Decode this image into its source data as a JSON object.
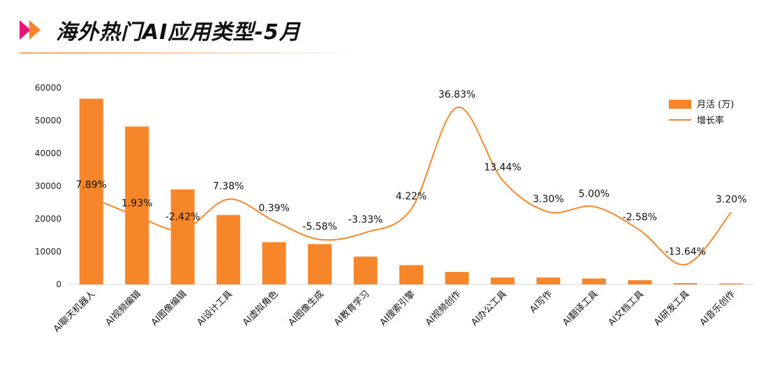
{
  "header": {
    "title": "海外热门AI应用类型-5月"
  },
  "colors": {
    "accent": "#F7862A",
    "logo_left": "#E9157A",
    "logo_right": "#F7862A"
  },
  "chart_data": {
    "type": "bar",
    "categories": [
      "AI聊天机器人",
      "AI视频编辑",
      "AI图像编辑",
      "AI设计工具",
      "AI虚拟角色",
      "AI图像生成",
      "AI教育学习",
      "AI搜索引擎",
      "AI视频创作",
      "AI办公工具",
      "AI写作",
      "AI翻译工具",
      "AI文档工具",
      "AI研发工具",
      "AI音乐创作"
    ],
    "series": [
      {
        "name": "月活 (万)",
        "kind": "bar",
        "values": [
          56700,
          48200,
          29000,
          21200,
          12900,
          12300,
          8500,
          5900,
          3800,
          2100,
          2100,
          1800,
          1300,
          400,
          300
        ]
      },
      {
        "name": "增长率",
        "kind": "line",
        "values": [
          7.89,
          1.93,
          -2.42,
          7.38,
          0.39,
          -5.58,
          -3.33,
          4.22,
          36.83,
          13.44,
          3.3,
          5.0,
          -2.58,
          -13.64,
          3.2
        ],
        "labels": [
          "7.89%",
          "1.93%",
          "-2.42%",
          "7.38%",
          "0.39%",
          "-5.58%",
          "-3.33%",
          "4.22%",
          "36.83%",
          "13.44%",
          "3.30%",
          "5.00%",
          "-2.58%",
          "-13.64%",
          "3.20%"
        ]
      }
    ],
    "yticks": [
      "60000",
      "50000",
      "40000",
      "30000",
      "20000",
      "10000",
      "0"
    ],
    "ylim": [
      0,
      60000
    ],
    "legend_position": "top-right",
    "grid": false
  }
}
